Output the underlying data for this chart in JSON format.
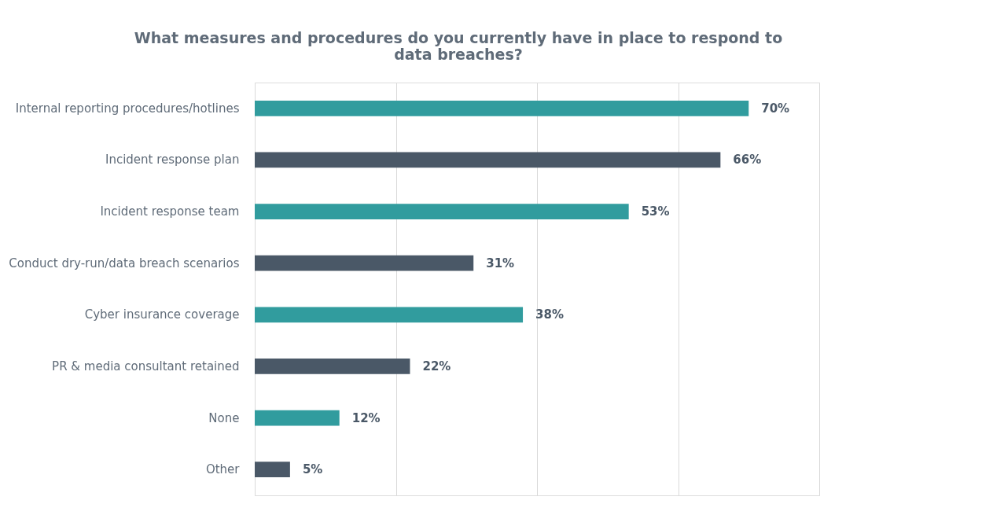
{
  "chart_data": {
    "type": "bar",
    "orientation": "horizontal",
    "title": "What measures and procedures do you currently have in place to respond to\ndata breaches?",
    "categories": [
      "Internal reporting procedures/hotlines",
      "Incident response plan",
      "Incident response team",
      "Conduct dry-run/data breach scenarios",
      "Cyber insurance coverage",
      "PR & media consultant retained",
      "None",
      "Other"
    ],
    "values": [
      70,
      66,
      53,
      31,
      38,
      22,
      12,
      5
    ],
    "value_labels": [
      "70%",
      "66%",
      "53%",
      "31%",
      "38%",
      "22%",
      "12%",
      "5%"
    ],
    "colors": [
      "#319c9e",
      "#4a5867",
      "#319c9e",
      "#4a5867",
      "#319c9e",
      "#4a5867",
      "#319c9e",
      "#4a5867"
    ],
    "xlim": [
      0,
      80
    ],
    "xticks": [
      {
        "value": 0,
        "label": null
      },
      {
        "value": 20,
        "label": null
      },
      {
        "value": 40,
        "label": null
      },
      {
        "value": 60,
        "label": null
      },
      {
        "value": 80,
        "label": null
      }
    ],
    "grid": "x",
    "tick_labels": "y",
    "legend": false
  }
}
